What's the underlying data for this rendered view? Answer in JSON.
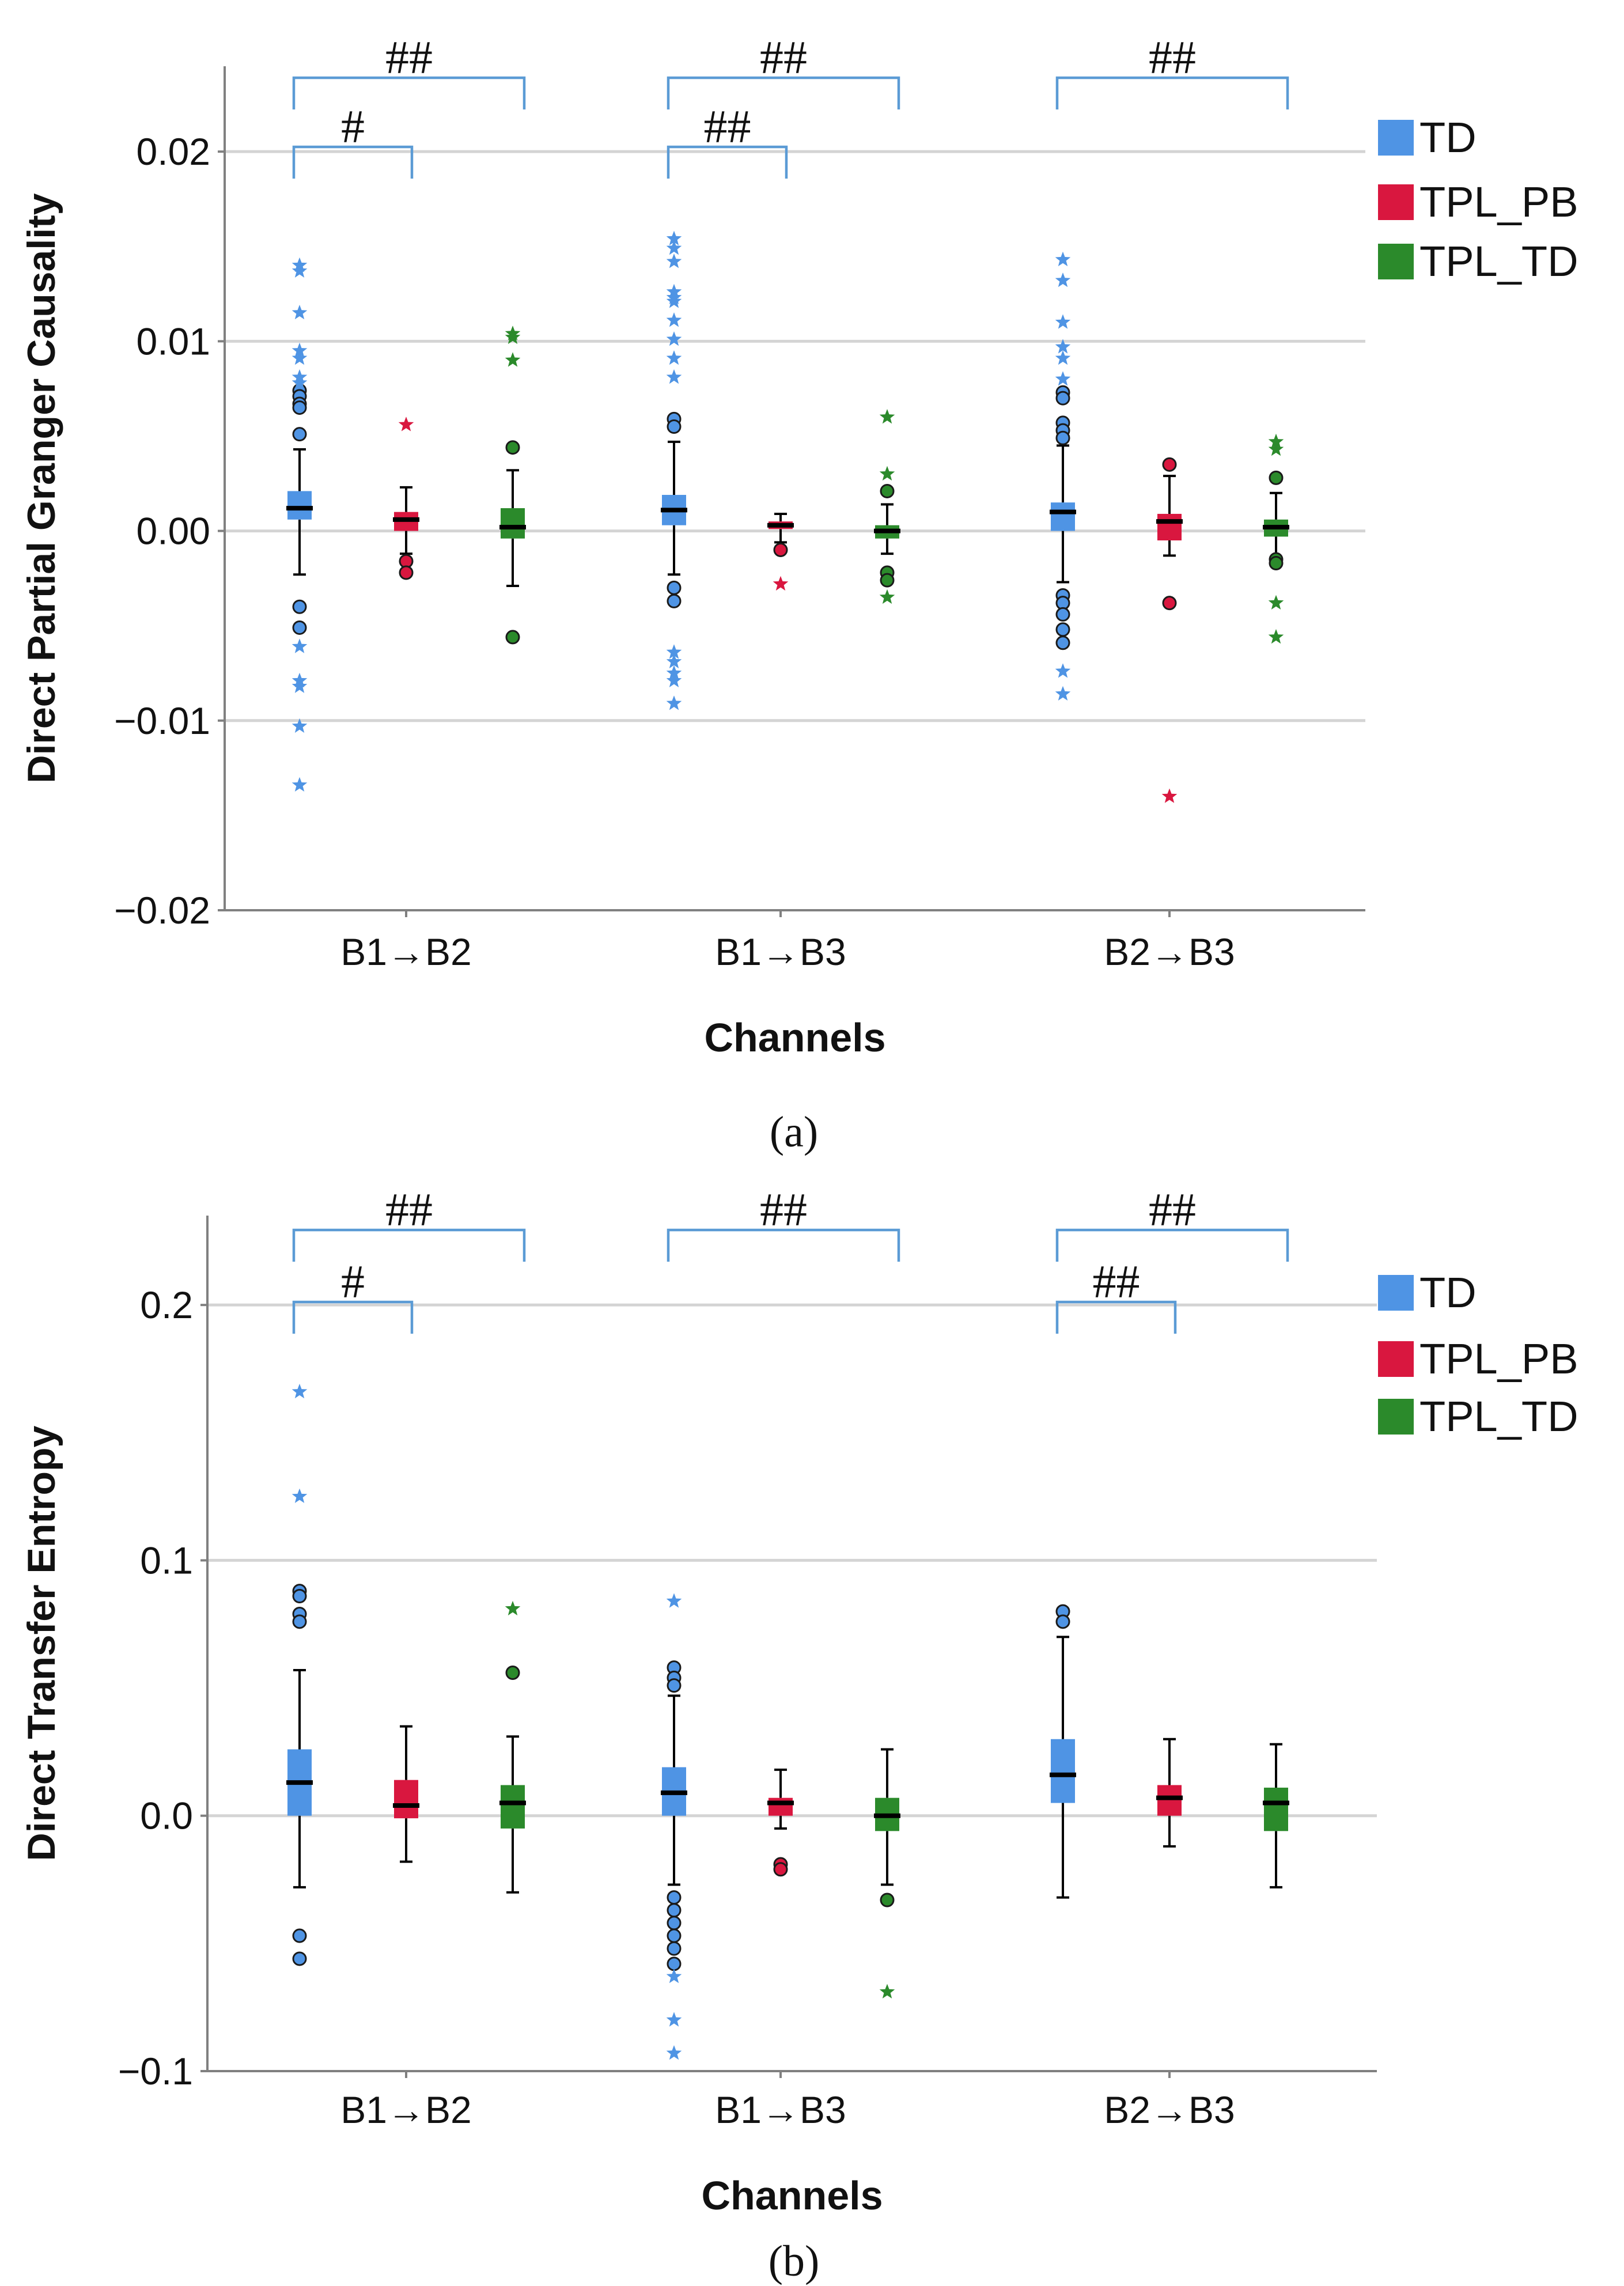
{
  "figure": {
    "panels": [
      "a",
      "b"
    ],
    "captions": [
      "(a)",
      "(b)"
    ]
  },
  "colors": {
    "TD": "#4f94e4",
    "TPL_PB": "#d9173f",
    "TPL_TD": "#2b8a2b",
    "bracket": "#5b9bd5",
    "grid": "#d4d4d4",
    "axis": "#808080"
  },
  "chart_data": [
    {
      "type": "boxplot",
      "panel": "a",
      "caption": "(a)",
      "ylabel": "Direct Partial Granger Causality",
      "xlabel": "Channels",
      "ylim": [
        -0.02,
        0.0245
      ],
      "yticks": [
        0.02,
        0.01,
        0.0,
        -0.01,
        -0.02
      ],
      "ytick_labels": [
        "0.02",
        "0.01",
        "0.00",
        "−0.01",
        "−0.02"
      ],
      "categories": [
        "B1→B2",
        "B1→B3",
        "B2→B3"
      ],
      "legend": {
        "position": "right",
        "entries": [
          {
            "label": "TD",
            "color_key": "TD"
          },
          {
            "label": "TPL_PB",
            "color_key": "TPL_PB"
          },
          {
            "label": "TPL_TD",
            "color_key": "TPL_TD"
          }
        ]
      },
      "series": [
        {
          "name": "TD",
          "color_key": "TD",
          "boxes": [
            {
              "q1": 0.0006,
              "median": 0.0012,
              "q3": 0.0021,
              "whisker_low": -0.0023,
              "whisker_high": 0.0043,
              "outliers": [
                0.0074,
                0.0071,
                0.0067,
                0.0065,
                0.0051,
                -0.004,
                -0.0051
              ],
              "extremes": [
                0.014,
                0.0137,
                0.0115,
                0.0095,
                0.0091,
                0.0081,
                0.0078,
                -0.0061,
                -0.0079,
                -0.0082,
                -0.0103,
                -0.0134
              ]
            },
            {
              "q1": 0.0003,
              "median": 0.0011,
              "q3": 0.0019,
              "whisker_low": -0.0023,
              "whisker_high": 0.0047,
              "outliers": [
                0.0059,
                0.0055,
                -0.003,
                -0.0037
              ],
              "extremes": [
                0.0154,
                0.0149,
                0.0142,
                0.0126,
                0.0123,
                0.0121,
                0.0111,
                0.0101,
                0.0091,
                0.0081,
                -0.0064,
                -0.0069,
                -0.0075,
                -0.0079,
                -0.0091
              ]
            },
            {
              "q1": 0.0,
              "median": 0.001,
              "q3": 0.0015,
              "whisker_low": -0.0027,
              "whisker_high": 0.0045,
              "outliers": [
                0.0073,
                0.007,
                0.0057,
                0.0053,
                0.0049,
                -0.0034,
                -0.0038,
                -0.0044,
                -0.0052,
                -0.0059
              ],
              "extremes": [
                0.0143,
                0.0132,
                0.011,
                0.0097,
                0.0091,
                0.008,
                -0.0074,
                -0.0086
              ]
            }
          ]
        },
        {
          "name": "TPL_PB",
          "color_key": "TPL_PB",
          "boxes": [
            {
              "q1": 0.0,
              "median": 0.0006,
              "q3": 0.001,
              "whisker_low": -0.0012,
              "whisker_high": 0.0023,
              "outliers": [
                -0.0016,
                -0.0022
              ],
              "extremes": [
                0.0056
              ]
            },
            {
              "q1": 0.0001,
              "median": 0.0003,
              "q3": 0.0005,
              "whisker_low": -0.0006,
              "whisker_high": 0.0009,
              "outliers": [
                -0.001
              ],
              "extremes": [
                -0.0028
              ]
            },
            {
              "q1": -0.0005,
              "median": 0.0005,
              "q3": 0.0009,
              "whisker_low": -0.0013,
              "whisker_high": 0.0029,
              "outliers": [
                0.0035,
                -0.0038
              ],
              "extremes": [
                -0.014
              ]
            }
          ]
        },
        {
          "name": "TPL_TD",
          "color_key": "TPL_TD",
          "boxes": [
            {
              "q1": -0.0004,
              "median": 0.0002,
              "q3": 0.0012,
              "whisker_low": -0.0029,
              "whisker_high": 0.0032,
              "outliers": [
                0.0044,
                -0.0056
              ],
              "extremes": [
                0.0104,
                0.0102,
                0.009
              ]
            },
            {
              "q1": -0.0004,
              "median": 0.0,
              "q3": 0.0003,
              "whisker_low": -0.0012,
              "whisker_high": 0.0014,
              "outliers": [
                0.0021,
                -0.0022,
                -0.0026
              ],
              "extremes": [
                0.006,
                0.003,
                -0.0035
              ]
            },
            {
              "q1": -0.0003,
              "median": 0.0002,
              "q3": 0.0006,
              "whisker_low": -0.0014,
              "whisker_high": 0.002,
              "outliers": [
                0.0028,
                -0.0015,
                -0.0017
              ],
              "extremes": [
                0.0047,
                0.0043,
                -0.0038,
                -0.0056
              ]
            }
          ]
        }
      ],
      "significance": [
        {
          "category": 0,
          "from": "TD",
          "to": "TPL_TD",
          "label": "##",
          "level": 1
        },
        {
          "category": 0,
          "from": "TD",
          "to": "TPL_PB",
          "label": "#",
          "level": 2
        },
        {
          "category": 1,
          "from": "TD",
          "to": "TPL_TD",
          "label": "##",
          "level": 1
        },
        {
          "category": 1,
          "from": "TD",
          "to": "TPL_PB",
          "label": "##",
          "level": 2
        },
        {
          "category": 2,
          "from": "TD",
          "to": "TPL_TD",
          "label": "##",
          "level": 1
        }
      ]
    },
    {
      "type": "boxplot",
      "panel": "b",
      "caption": "(b)",
      "ylabel": "Direct Transfer Entropy",
      "xlabel": "Channels",
      "ylim": [
        -0.1,
        0.235
      ],
      "yticks": [
        0.2,
        0.1,
        0.0,
        -0.1
      ],
      "ytick_labels": [
        "0.2",
        "0.1",
        "0.0",
        "−0.1"
      ],
      "categories": [
        "B1→B2",
        "B1→B3",
        "B2→B3"
      ],
      "legend": {
        "position": "right",
        "entries": [
          {
            "label": "TD",
            "color_key": "TD"
          },
          {
            "label": "TPL_PB",
            "color_key": "TPL_PB"
          },
          {
            "label": "TPL_TD",
            "color_key": "TPL_TD"
          }
        ]
      },
      "series": [
        {
          "name": "TD",
          "color_key": "TD",
          "boxes": [
            {
              "q1": 0.0,
              "median": 0.013,
              "q3": 0.026,
              "whisker_low": -0.028,
              "whisker_high": 0.057,
              "outliers": [
                0.088,
                0.086,
                0.079,
                0.076,
                -0.047,
                -0.056
              ],
              "extremes": [
                0.166,
                0.125
              ]
            },
            {
              "q1": 0.0,
              "median": 0.009,
              "q3": 0.019,
              "whisker_low": -0.027,
              "whisker_high": 0.047,
              "outliers": [
                0.058,
                0.054,
                0.051,
                -0.032,
                -0.037,
                -0.042,
                -0.047,
                -0.052,
                -0.058
              ],
              "extremes": [
                0.084,
                -0.063,
                -0.08,
                -0.093
              ]
            },
            {
              "q1": 0.005,
              "median": 0.016,
              "q3": 0.03,
              "whisker_low": -0.032,
              "whisker_high": 0.07,
              "outliers": [
                0.08,
                0.076
              ],
              "extremes": []
            }
          ]
        },
        {
          "name": "TPL_PB",
          "color_key": "TPL_PB",
          "boxes": [
            {
              "q1": -0.001,
              "median": 0.004,
              "q3": 0.014,
              "whisker_low": -0.018,
              "whisker_high": 0.035,
              "outliers": [],
              "extremes": []
            },
            {
              "q1": 0.0,
              "median": 0.005,
              "q3": 0.007,
              "whisker_low": -0.005,
              "whisker_high": 0.018,
              "outliers": [
                -0.019,
                -0.021
              ],
              "extremes": []
            },
            {
              "q1": 0.0,
              "median": 0.007,
              "q3": 0.012,
              "whisker_low": -0.012,
              "whisker_high": 0.03,
              "outliers": [],
              "extremes": []
            }
          ]
        },
        {
          "name": "TPL_TD",
          "color_key": "TPL_TD",
          "boxes": [
            {
              "q1": -0.005,
              "median": 0.005,
              "q3": 0.012,
              "whisker_low": -0.03,
              "whisker_high": 0.031,
              "outliers": [
                0.056
              ],
              "extremes": [
                0.081
              ]
            },
            {
              "q1": -0.006,
              "median": 0.0,
              "q3": 0.007,
              "whisker_low": -0.027,
              "whisker_high": 0.026,
              "outliers": [
                -0.033
              ],
              "extremes": [
                -0.069
              ]
            },
            {
              "q1": -0.006,
              "median": 0.005,
              "q3": 0.011,
              "whisker_low": -0.028,
              "whisker_high": 0.028,
              "outliers": [],
              "extremes": []
            }
          ]
        }
      ],
      "significance": [
        {
          "category": 0,
          "from": "TD",
          "to": "TPL_TD",
          "label": "##",
          "level": 1
        },
        {
          "category": 0,
          "from": "TD",
          "to": "TPL_PB",
          "label": "#",
          "level": 2
        },
        {
          "category": 1,
          "from": "TD",
          "to": "TPL_TD",
          "label": "##",
          "level": 1
        },
        {
          "category": 2,
          "from": "TD",
          "to": "TPL_TD",
          "label": "##",
          "level": 1
        },
        {
          "category": 2,
          "from": "TD",
          "to": "TPL_PB",
          "label": "##",
          "level": 2
        }
      ]
    }
  ]
}
